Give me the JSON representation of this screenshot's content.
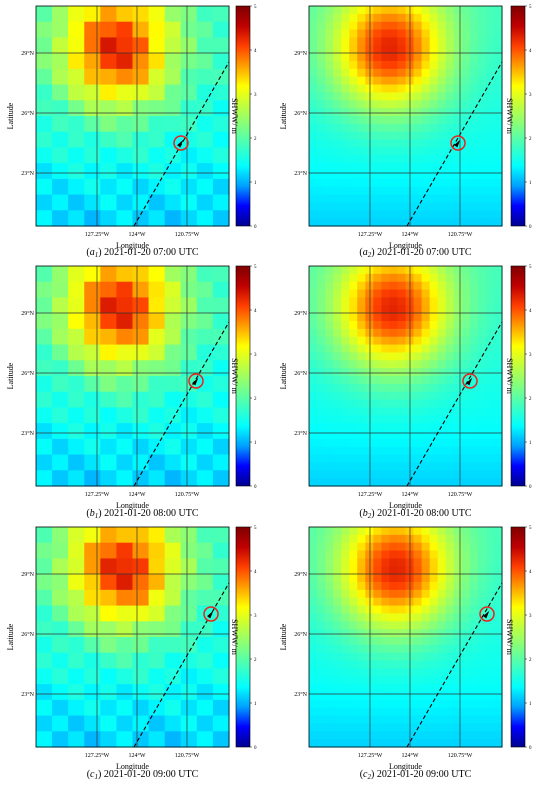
{
  "colors": {
    "grid": "#333333",
    "track": "#000000",
    "ring": "#e8231e",
    "colormap": [
      "#00008f",
      "#0000ff",
      "#00a0ff",
      "#00ffff",
      "#40ffbf",
      "#80ff80",
      "#bfff40",
      "#ffff00",
      "#ff9f00",
      "#ff4000",
      "#bf0000",
      "#800000"
    ]
  },
  "chart_data": [
    {
      "panel": "a1",
      "type": "heatmap",
      "caption_label": "a",
      "caption_sub": "1",
      "caption_text": "2021-01-20 07:00 UTC",
      "xlabel": "Longitude",
      "ylabel": "Latitude",
      "xticks": [
        "127.25°W",
        "124°W",
        "120.75°W"
      ],
      "yticks": [
        "29°N",
        "26°N",
        "23°N"
      ],
      "colorbar_label": "SHWW/ m",
      "colorbar_ticks": [
        "0",
        "1",
        "2",
        "3",
        "4",
        "5"
      ],
      "clim": [
        0,
        5
      ],
      "grid": true,
      "smooth": false,
      "marker_highlight": true,
      "variable": "SHWW (m)"
    },
    {
      "panel": "a2",
      "type": "heatmap",
      "caption_label": "a",
      "caption_sub": "2",
      "caption_text": "2021-01-20 07:00 UTC",
      "xlabel": "Longitude",
      "ylabel": "Latitude",
      "xticks": [
        "127.25°W",
        "124°W",
        "120.75°W"
      ],
      "yticks": [
        "29°N",
        "26°N",
        "23°N"
      ],
      "colorbar_label": "SHWW/ m",
      "colorbar_ticks": [
        "0",
        "1",
        "2",
        "3",
        "4",
        "5"
      ],
      "clim": [
        0,
        5
      ],
      "grid": true,
      "smooth": true,
      "marker_highlight": true,
      "variable": "SHWW (m)"
    },
    {
      "panel": "b1",
      "type": "heatmap",
      "caption_label": "b",
      "caption_sub": "1",
      "caption_text": "2021-01-20 08:00 UTC",
      "xlabel": "Longitude",
      "ylabel": "Latitude",
      "xticks": [
        "127.25°W",
        "124°W",
        "120.75°W"
      ],
      "yticks": [
        "29°N",
        "26°N",
        "23°N"
      ],
      "colorbar_label": "SHWW/ m",
      "colorbar_ticks": [
        "0",
        "1",
        "2",
        "3",
        "4",
        "5"
      ],
      "clim": [
        0,
        5
      ],
      "grid": true,
      "smooth": false,
      "marker_highlight": true,
      "variable": "SHWW (m)"
    },
    {
      "panel": "b2",
      "type": "heatmap",
      "caption_label": "b",
      "caption_sub": "2",
      "caption_text": "2021-01-20 08:00 UTC",
      "xlabel": "Longitude",
      "ylabel": "Latitude",
      "xticks": [
        "127.25°W",
        "124°W",
        "120.75°W"
      ],
      "yticks": [
        "29°N",
        "26°N",
        "23°N"
      ],
      "colorbar_label": "SHWW/ m",
      "colorbar_ticks": [
        "0",
        "1",
        "2",
        "3",
        "4",
        "5"
      ],
      "clim": [
        0,
        5
      ],
      "grid": true,
      "smooth": true,
      "marker_highlight": true,
      "variable": "SHWW (m)"
    },
    {
      "panel": "c1",
      "type": "heatmap",
      "caption_label": "c",
      "caption_sub": "1",
      "caption_text": "2021-01-20 09:00 UTC",
      "xlabel": "Longitude",
      "ylabel": "Latitude",
      "xticks": [
        "127.25°W",
        "124°W",
        "120.75°W"
      ],
      "yticks": [
        "29°N",
        "26°N",
        "23°N"
      ],
      "colorbar_label": "SHWW/ m",
      "colorbar_ticks": [
        "0",
        "1",
        "2",
        "3",
        "4",
        "5"
      ],
      "clim": [
        0,
        5
      ],
      "grid": true,
      "smooth": false,
      "marker_highlight": true,
      "variable": "SHWW (m)"
    },
    {
      "panel": "c2",
      "type": "heatmap",
      "caption_label": "c",
      "caption_sub": "2",
      "caption_text": "2021-01-20 09:00 UTC",
      "xlabel": "Longitude",
      "ylabel": "Latitude",
      "xticks": [
        "127.25°W",
        "124°W",
        "120.75°W"
      ],
      "yticks": [
        "29°N",
        "26°N",
        "23°N"
      ],
      "colorbar_label": "SHWW/ m",
      "colorbar_ticks": [
        "0",
        "1",
        "2",
        "3",
        "4",
        "5"
      ],
      "clim": [
        0,
        5
      ],
      "grid": true,
      "smooth": true,
      "marker_highlight": true,
      "variable": "SHWW (m)"
    }
  ]
}
